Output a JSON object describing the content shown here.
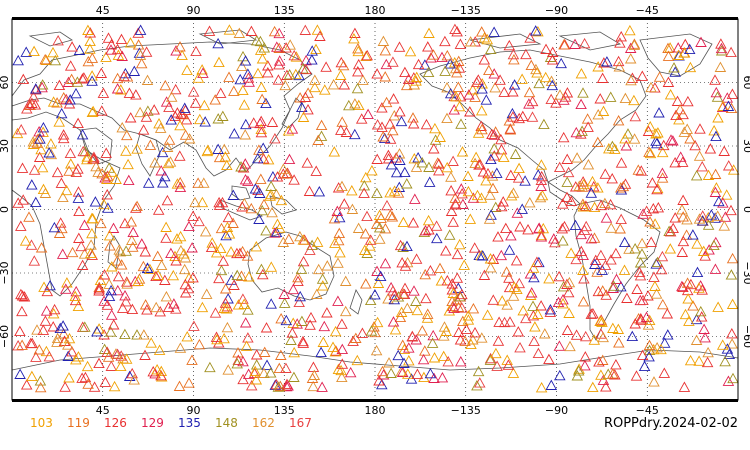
{
  "map": {
    "caption": "ROPPdry.2024-02-02",
    "lon_tick_labels": [
      "45",
      "90",
      "135",
      "180",
      "−135",
      "−90",
      "−45"
    ],
    "lon_ticks": [
      45,
      90,
      135,
      180,
      225,
      270,
      315
    ],
    "lat_tick_labels": [
      "60",
      "30",
      "0",
      "−30",
      "−60"
    ],
    "lat_ticks": [
      60,
      30,
      0,
      -30,
      -60
    ],
    "lon_range": [
      0,
      360
    ],
    "lat_range": [
      -90,
      90
    ],
    "grid": "dotted",
    "marker": "triangle-outline",
    "categories": [
      {
        "label": "103",
        "color": "#f0a000"
      },
      {
        "label": "119",
        "color": "#e87020"
      },
      {
        "label": "126",
        "color": "#e83030"
      },
      {
        "label": "129",
        "color": "#e02050"
      },
      {
        "label": "135",
        "color": "#2020b0"
      },
      {
        "label": "148",
        "color": "#a09020"
      },
      {
        "label": "162",
        "color": "#e09030"
      },
      {
        "label": "167",
        "color": "#e84040"
      }
    ]
  }
}
